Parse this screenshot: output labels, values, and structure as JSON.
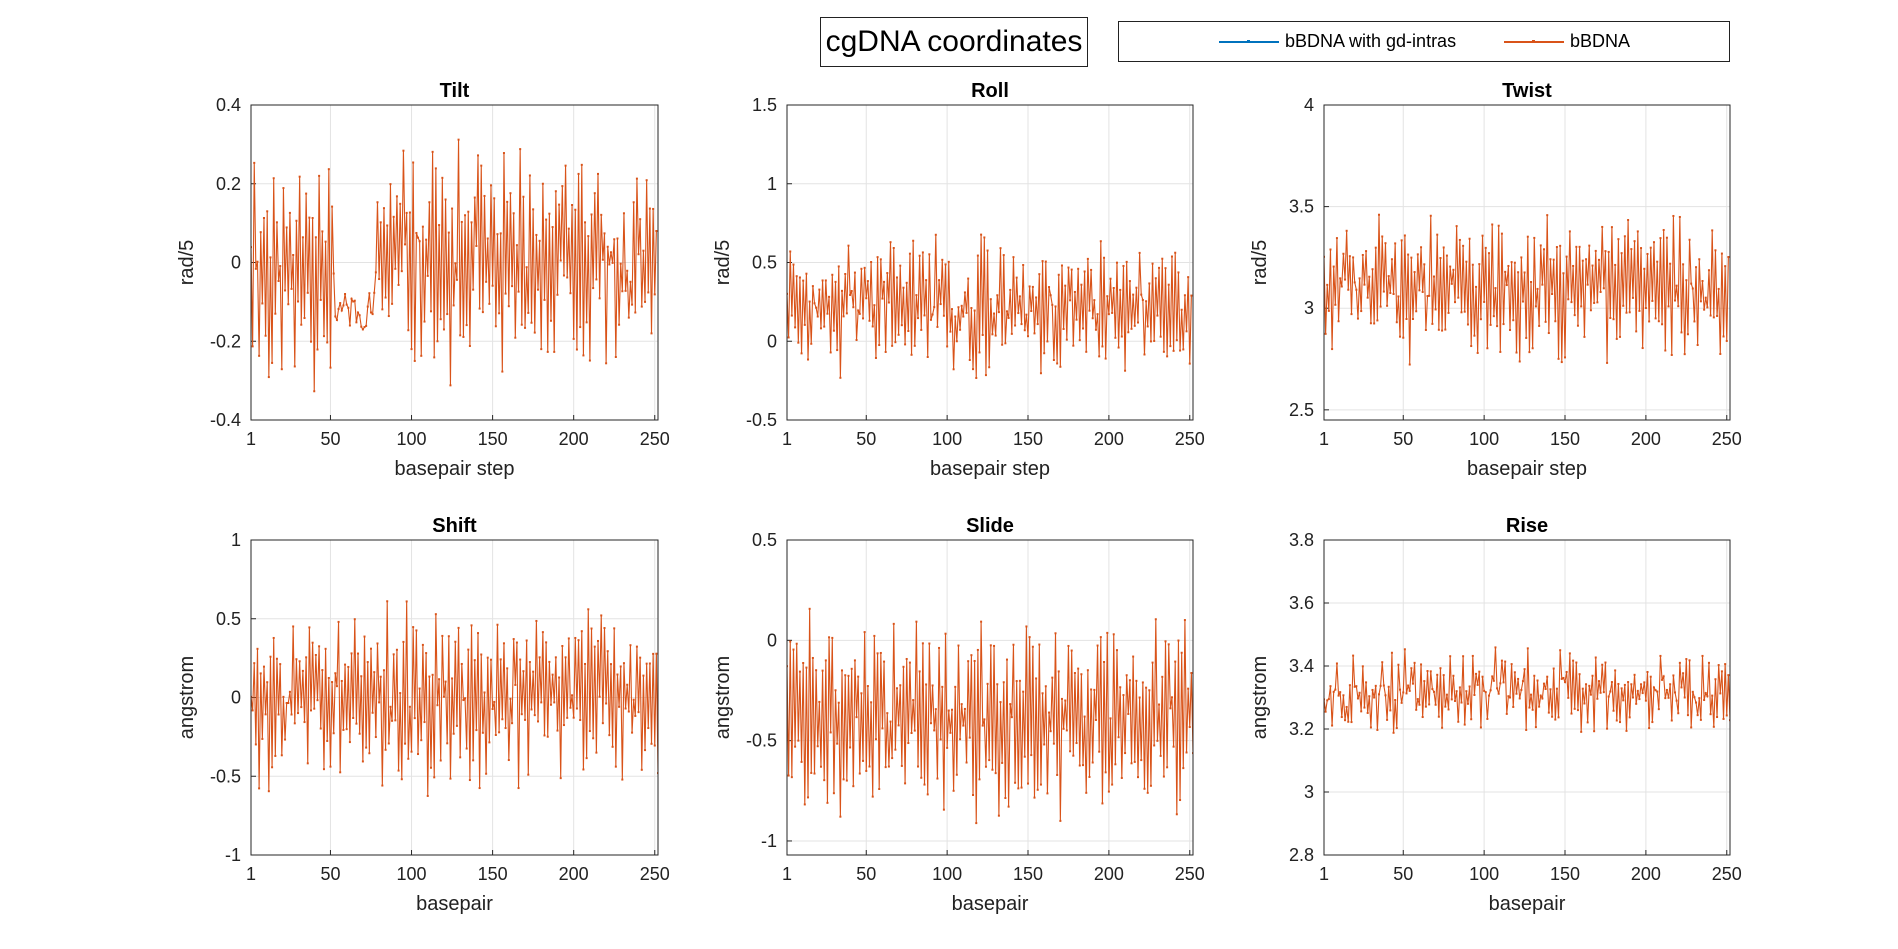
{
  "figure": {
    "suptitle": "cgDNA coordinates",
    "legend": [
      {
        "name": "bBDNA with gd-intras",
        "color": "#0072bd"
      },
      {
        "name": "bBDNA",
        "color": "#d95319"
      }
    ]
  },
  "chart_data": [
    {
      "type": "line",
      "title": "Tilt",
      "xlabel": "basepair step",
      "ylabel": "rad/5",
      "xlim": [
        1,
        252
      ],
      "ylim": [
        -0.4,
        0.4
      ],
      "xticks": [
        "1",
        "50",
        "100",
        "150",
        "200",
        "250"
      ],
      "yticks": [
        "-0.4",
        "-0.2",
        "0",
        "0.2",
        "0.4"
      ],
      "grid": true,
      "series_names": [
        "bBDNA with gd-intras",
        "bBDNA"
      ],
      "gen": {
        "n": 251,
        "base": 0.0,
        "alt": 0.18,
        "noise": 0.12,
        "seed": 11,
        "min": -0.38,
        "max": 0.42,
        "calm": [
          [
            52,
            76,
            0.05,
            -0.12
          ]
        ]
      },
      "values": []
    },
    {
      "type": "line",
      "title": "Roll",
      "xlabel": "basepair step",
      "ylabel": "rad/5",
      "xlim": [
        1,
        252
      ],
      "ylim": [
        -0.5,
        1.5
      ],
      "xticks": [
        "1",
        "50",
        "100",
        "150",
        "200",
        "250"
      ],
      "yticks": [
        "-0.5",
        "0",
        "0.5",
        "1",
        "1.5"
      ],
      "grid": true,
      "series_names": [
        "bBDNA with gd-intras",
        "bBDNA"
      ],
      "gen": {
        "n": 251,
        "base": 0.22,
        "alt": 0.25,
        "noise": 0.18,
        "seed": 23,
        "min": -0.32,
        "max": 1.18,
        "calm": []
      },
      "values": []
    },
    {
      "type": "line",
      "title": "Twist",
      "xlabel": "basepair step",
      "ylabel": "rad/5",
      "xlim": [
        1,
        252
      ],
      "ylim": [
        2.45,
        4.0
      ],
      "xticks": [
        "1",
        "50",
        "100",
        "150",
        "200",
        "250"
      ],
      "yticks": [
        "2.5",
        "3",
        "3.5",
        "4"
      ],
      "grid": true,
      "series_names": [
        "bBDNA with gd-intras",
        "bBDNA"
      ],
      "gen": {
        "n": 251,
        "base": 3.1,
        "alt": 0.22,
        "noise": 0.14,
        "seed": 37,
        "min": 2.43,
        "max": 3.8,
        "calm": []
      },
      "values": []
    },
    {
      "type": "line",
      "title": "Shift",
      "xlabel": "basepair",
      "ylabel": "angstrom",
      "xlim": [
        1,
        252
      ],
      "ylim": [
        -1,
        1
      ],
      "xticks": [
        "1",
        "50",
        "100",
        "150",
        "200",
        "250"
      ],
      "yticks": [
        "-1",
        "-0.5",
        "0",
        "0.5",
        "1"
      ],
      "grid": true,
      "series_names": [
        "bBDNA with gd-intras",
        "bBDNA"
      ],
      "gen": {
        "n": 252,
        "base": 0.0,
        "alt": 0.35,
        "noise": 0.22,
        "seed": 53,
        "min": -1.02,
        "max": 0.9,
        "calm": []
      },
      "values": []
    },
    {
      "type": "line",
      "title": "Slide",
      "xlabel": "basepair",
      "ylabel": "angstrom",
      "xlim": [
        1,
        252
      ],
      "ylim": [
        -1.07,
        0.5
      ],
      "xticks": [
        "1",
        "50",
        "100",
        "150",
        "200",
        "250"
      ],
      "yticks": [
        "-1",
        "-0.5",
        "0",
        "0.5"
      ],
      "grid": true,
      "series_names": [
        "bBDNA with gd-intras",
        "bBDNA"
      ],
      "gen": {
        "n": 252,
        "base": -0.38,
        "alt": 0.32,
        "noise": 0.18,
        "seed": 71,
        "min": -1.06,
        "max": 0.25,
        "calm": []
      },
      "values": []
    },
    {
      "type": "line",
      "title": "Rise",
      "xlabel": "basepair",
      "ylabel": "angstrom",
      "xlim": [
        1,
        252
      ],
      "ylim": [
        2.8,
        3.8
      ],
      "xticks": [
        "1",
        "50",
        "100",
        "150",
        "200",
        "250"
      ],
      "yticks": [
        "2.8",
        "3",
        "3.2",
        "3.4",
        "3.6",
        "3.8"
      ],
      "grid": true,
      "series_names": [
        "bBDNA with gd-intras",
        "bBDNA"
      ],
      "gen": {
        "n": 252,
        "base": 3.32,
        "alt": 0.06,
        "noise": 0.07,
        "seed": 97,
        "min": 2.96,
        "max": 3.74,
        "calm": []
      },
      "values": []
    }
  ]
}
